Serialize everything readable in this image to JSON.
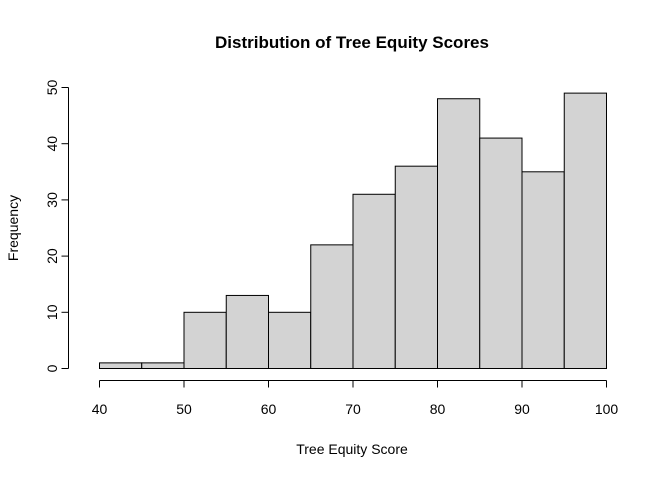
{
  "chart_data": {
    "type": "bar",
    "title": "Distribution of Tree Equity Scores",
    "xlabel": "Tree Equity Score",
    "ylabel": "Frequency",
    "bin_edges": [
      40,
      45,
      50,
      55,
      60,
      65,
      70,
      75,
      80,
      85,
      90,
      95,
      100
    ],
    "values": [
      1,
      1,
      10,
      13,
      10,
      22,
      31,
      36,
      48,
      41,
      35,
      49
    ],
    "xlim": [
      40,
      100
    ],
    "ylim": [
      0,
      50
    ],
    "x_ticks": [
      "40",
      "50",
      "60",
      "70",
      "80",
      "90",
      "100"
    ],
    "y_ticks": [
      "0",
      "10",
      "20",
      "30",
      "40",
      "50"
    ],
    "bar_color": "#d3d3d3",
    "grid": false
  }
}
